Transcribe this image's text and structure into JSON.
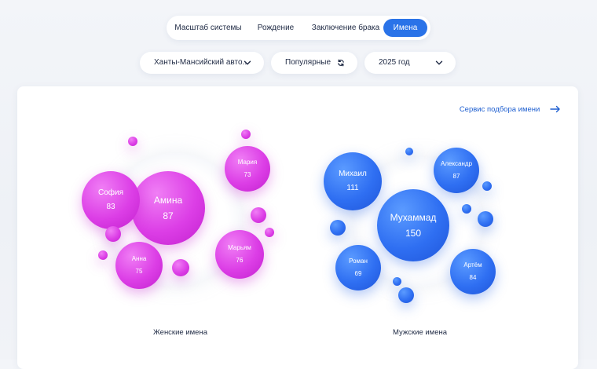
{
  "tabs": [
    "Масштаб системы",
    "Рождение",
    "Заключение брака",
    "Имена"
  ],
  "active_tab": "Имена",
  "filters": {
    "region": "Ханты-Мансийский авто...",
    "mode": "Популярные",
    "year": "2025 год"
  },
  "service_link": "Сервис подбора имени",
  "female": {
    "caption": "Женские имена",
    "names": [
      {
        "name": "Амина",
        "count": "87"
      },
      {
        "name": "София",
        "count": "83"
      },
      {
        "name": "Мария",
        "count": "73"
      },
      {
        "name": "Марьям",
        "count": "76"
      },
      {
        "name": "Анна",
        "count": "75"
      }
    ]
  },
  "male": {
    "caption": "Мужские имена",
    "names": [
      {
        "name": "Мухаммад",
        "count": "150"
      },
      {
        "name": "Михаил",
        "count": "111"
      },
      {
        "name": "Александр",
        "count": "87"
      },
      {
        "name": "Роман",
        "count": "69"
      },
      {
        "name": "Артём",
        "count": "84"
      }
    ]
  },
  "colors": {
    "accent": "#2a73e8",
    "female_bubble": "#d93ee4",
    "male_bubble": "#2f6ff2"
  },
  "icons": {
    "region": "chevron-down-icon",
    "mode": "refresh-icon",
    "year": "chevron-down-icon",
    "service": "arrow-right-icon"
  }
}
